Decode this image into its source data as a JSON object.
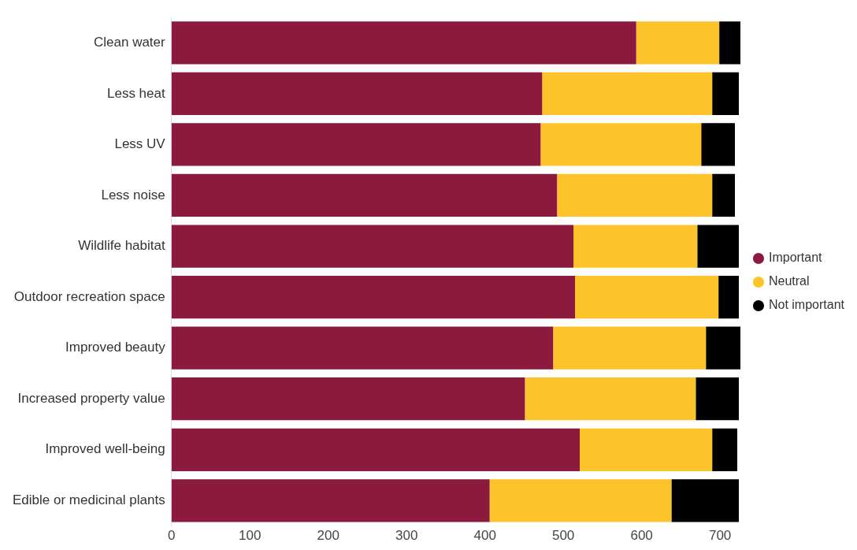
{
  "chart_data": {
    "type": "bar",
    "orientation": "horizontal",
    "stacked": true,
    "categories": [
      "Clean water",
      "Less heat",
      "Less UV",
      "Less noise",
      "Wildlife habitat",
      "Outdoor recreation space",
      "Improved beauty",
      "Increased property value",
      "Improved well-being",
      "Edible or medicinal plants"
    ],
    "series": [
      {
        "name": "Important",
        "color": "#8b1a3e",
        "values": [
          593,
          473,
          471,
          492,
          513,
          515,
          487,
          451,
          521,
          406
        ]
      },
      {
        "name": "Neutral",
        "color": "#fcc32a",
        "values": [
          106,
          217,
          205,
          198,
          158,
          183,
          195,
          218,
          169,
          232
        ]
      },
      {
        "name": "Not important",
        "color": "#000000",
        "values": [
          27,
          34,
          43,
          29,
          53,
          26,
          44,
          55,
          32,
          86
        ]
      }
    ],
    "xlim": [
      0,
      730
    ],
    "xticks": [
      0,
      100,
      200,
      300,
      400,
      500,
      600,
      700
    ],
    "grid": false,
    "legend": "right",
    "marker": "circle"
  }
}
